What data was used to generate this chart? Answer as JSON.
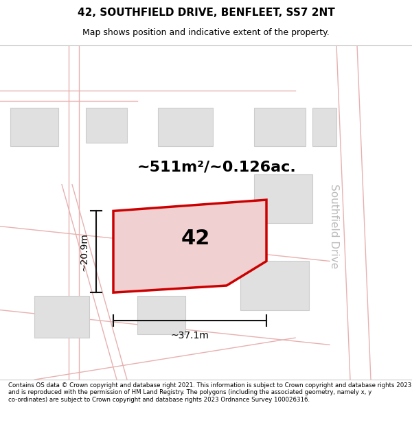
{
  "title_line1": "42, SOUTHFIELD DRIVE, BENFLEET, SS7 2NT",
  "title_line2": "Map shows position and indicative extent of the property.",
  "footer_text": "Contains OS data © Crown copyright and database right 2021. This information is subject to Crown copyright and database rights 2023 and is reproduced with the permission of HM Land Registry. The polygons (including the associated geometry, namely x, y co-ordinates) are subject to Crown copyright and database rights 2023 Ordnance Survey 100026316.",
  "area_label": "~511m²/~0.126ac.",
  "property_number": "42",
  "dim_width": "~37.1m",
  "dim_height": "~20.9m",
  "road_label": "Southfield Drive",
  "bg_color": "#ffffff",
  "map_bg": "#f5f5f5",
  "property_fill": "#f0d0d0",
  "property_edge": "#cc0000",
  "road_line_color": "#e8b0b0",
  "building_fill": "#e0e0e0",
  "building_edge": "#cccccc",
  "dim_line_color": "#111111",
  "header_bg": "#ffffff",
  "footer_bg": "#ffffff"
}
